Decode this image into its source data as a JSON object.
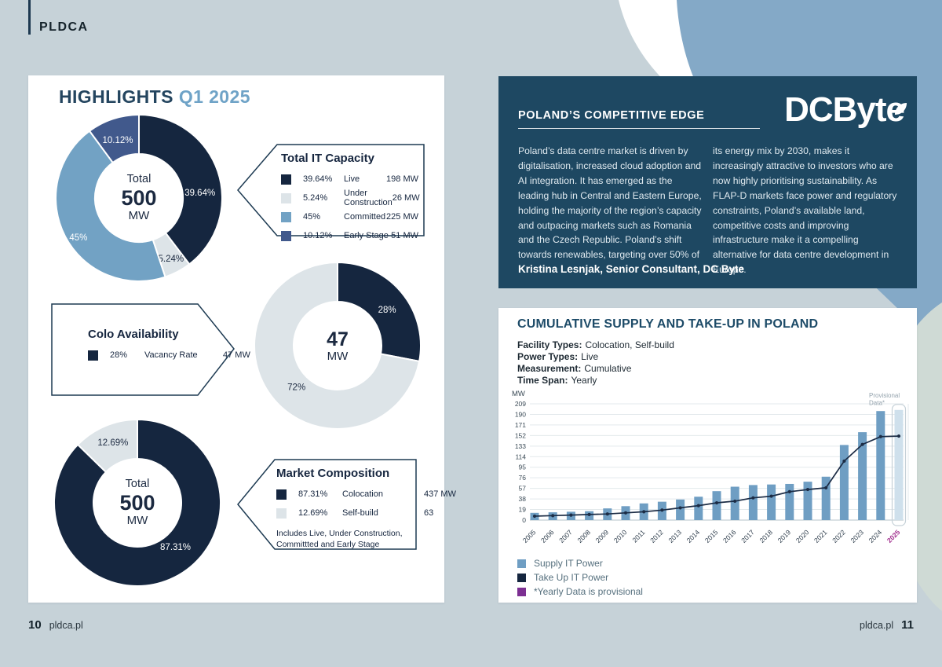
{
  "brand": {
    "name": "PLDCA"
  },
  "footer": {
    "left_page": "10",
    "left_site": "pldca.pl",
    "right_site": "pldca.pl",
    "right_page": "11"
  },
  "highlights": {
    "title": "HIGHLIGHTS",
    "period": "Q1 2025"
  },
  "edge_card": {
    "title": "POLAND’S COMPETITIVE EDGE",
    "logo_text": "DCByte",
    "col1": "Poland’s data centre market is driven by digitalisation, increased cloud adoption and AI integration. It has emerged as the leading hub in Central and Eastern Europe, holding the majority of the region’s capacity and outpacing markets such as Romania and the Czech Republic. Poland’s shift towards renewables, targeting over 50% of",
    "col2": "its energy mix by 2030, makes it increasingly attractive to investors who are now highly prioritising sustainability. As FLAP-D markets face power and regulatory constraints, Poland’s available land, competitive costs and improving infrastructure make it a compelling alternative for data centre development in Europe.",
    "attribution": "Kristina Lesnjak, Senior Consultant, DC Byte"
  },
  "supply_card": {
    "title": "CUMULATIVE SUPPLY AND TAKE-UP IN POLAND",
    "meta": [
      {
        "label": "Facility Types:",
        "value": "Colocation, Self-build"
      },
      {
        "label": "Power Types:",
        "value": "Live"
      },
      {
        "label": "Measurement:",
        "value": "Cumulative"
      },
      {
        "label": "Time Span:",
        "value": "Yearly"
      }
    ]
  },
  "colors": {
    "navy": "#15263f",
    "light_gray_slice": "#dde4e8",
    "light_blue": "#72a2c4",
    "slate_blue": "#41598c",
    "bar_blue": "#6f9ec3",
    "provisional_bar": "#cfe0ec",
    "magenta": "#a2308f",
    "purple": "#7c2f92",
    "dark_card_bg": "#1e4862"
  },
  "chart_data": [
    {
      "id": "total-it-capacity",
      "type": "pie",
      "title": "Total IT Capacity",
      "center": {
        "top": "Total",
        "value": "500",
        "unit": "MW"
      },
      "slices": [
        {
          "name": "Live",
          "pct": 39.64,
          "pct_label": "39.64%",
          "mw": "198 MW",
          "color": "#15263f",
          "label_color": "#ffffff",
          "label_pos": {
            "angle": 85,
            "r": 78
          }
        },
        {
          "name": "Under Construction",
          "pct": 5.24,
          "pct_label": "5.24%",
          "mw": "26 MW",
          "color": "#dde4e8",
          "label_color": "#1b2940",
          "label_pos": {
            "angle": 152,
            "r": 87
          }
        },
        {
          "name": "Committed",
          "pct": 45,
          "pct_label": "45%",
          "mw": "225 MW",
          "color": "#72a2c4",
          "label_color": "#ffffff",
          "label_pos": {
            "angle": 237,
            "r": 92
          }
        },
        {
          "name": "Early Stage",
          "pct": 10.12,
          "pct_label": "10.12%",
          "mw": "51 MW",
          "color": "#41598c",
          "label_color": "#ffffff",
          "label_pos": {
            "angle": 340,
            "r": 79
          }
        }
      ]
    },
    {
      "id": "colo-availability",
      "type": "pie",
      "title": "Colo Availability",
      "center": {
        "top": "",
        "value": "47",
        "unit": "MW"
      },
      "slices": [
        {
          "name": "Vacancy Rate",
          "pct": 28,
          "pct_label": "28%",
          "mw": "47 MW",
          "color": "#15263f",
          "label_color": "#ffffff",
          "label_pos": {
            "angle": 54,
            "r": 78
          }
        },
        {
          "pct": 72,
          "pct_label": "72%",
          "color": "#dde4e8",
          "label_color": "#1b2940",
          "label_pos": {
            "angle": 225,
            "r": 74
          }
        }
      ]
    },
    {
      "id": "market-composition",
      "type": "pie",
      "title": "Market Composition",
      "center": {
        "top": "Total",
        "value": "500",
        "unit": "MW"
      },
      "note": "Includes Live, Under Construction, Committted and Early Stage",
      "slices": [
        {
          "name": "Colocation",
          "pct": 87.31,
          "pct_label": "87.31%",
          "mw": "437 MW",
          "color": "#15263f",
          "label_color": "#ffffff",
          "label_pos": {
            "angle": 139,
            "r": 74
          }
        },
        {
          "name": "Self-build",
          "pct": 12.69,
          "pct_label": "12.69%",
          "mw": "63",
          "color": "#dde4e8",
          "label_color": "#1b2940",
          "label_pos": {
            "angle": 338,
            "r": 83
          }
        }
      ]
    },
    {
      "id": "cumulative-supply-take-up-poland",
      "type": "bar",
      "title": "CUMULATIVE SUPPLY AND TAKE-UP IN POLAND",
      "ylabel": "MW",
      "ylim": [
        0,
        209
      ],
      "yticks": [
        0,
        19,
        38,
        57,
        76,
        95,
        114,
        133,
        152,
        171,
        190,
        209
      ],
      "grid": true,
      "categories": [
        "2005",
        "2006",
        "2007",
        "2008",
        "2009",
        "2010",
        "2011",
        "2012",
        "2013",
        "2014",
        "2015",
        "2016",
        "2017",
        "2018",
        "2019",
        "2020",
        "2021",
        "2022",
        "2023",
        "2024",
        "2025"
      ],
      "series": [
        {
          "name": "Supply IT Power",
          "type": "bar",
          "color": "#6f9ec3",
          "values": [
            13,
            14,
            15,
            16,
            21,
            25,
            30,
            33,
            37,
            42,
            52,
            60,
            63,
            64,
            65,
            69,
            78,
            135,
            158,
            196,
            198
          ]
        },
        {
          "name": "Take Up IT Power",
          "type": "line",
          "color": "#1c2c45",
          "values": [
            7,
            8,
            9,
            10,
            11,
            13,
            15,
            18,
            22,
            26,
            31,
            34,
            40,
            43,
            51,
            55,
            58,
            106,
            136,
            150,
            151
          ]
        }
      ],
      "provisional": {
        "category": "2025",
        "annotation_line1": "Provisional",
        "annotation_line2": "Data*",
        "bar_color": "#cfe0ec",
        "label_color": "#a2308f"
      },
      "legend_position": "bottom-left",
      "legend": [
        {
          "label": "Supply IT Power",
          "color": "#6f9ec3"
        },
        {
          "label": "Take Up IT Power",
          "color": "#15263f"
        },
        {
          "label": "*Yearly Data is provisional",
          "color": "#7c2f92"
        }
      ]
    }
  ]
}
